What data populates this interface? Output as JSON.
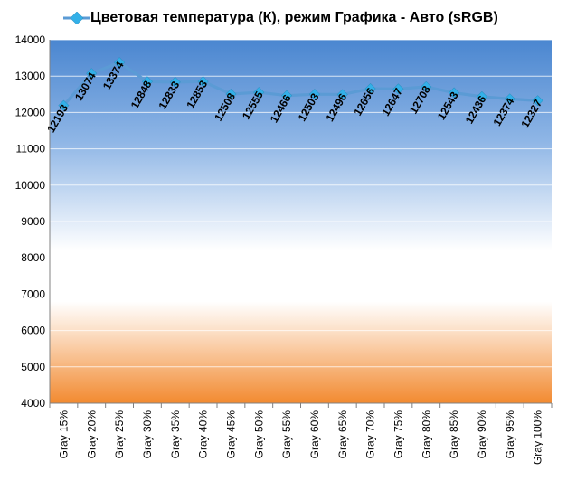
{
  "chart_data": {
    "type": "line",
    "title": "Цветовая температура (К), режим Графика - Авто (sRGB)",
    "xlabel": "",
    "ylabel": "",
    "ylim": [
      4000,
      14000
    ],
    "yticks": [
      4000,
      5000,
      6000,
      7000,
      8000,
      9000,
      10000,
      11000,
      12000,
      13000,
      14000
    ],
    "grid": true,
    "legend_position": "top",
    "categories": [
      "Gray 15%",
      "Gray 20%",
      "Gray 25%",
      "Gray 30%",
      "Gray 35%",
      "Gray 40%",
      "Gray 45%",
      "Gray 50%",
      "Gray 55%",
      "Gray 60%",
      "Gray 65%",
      "Gray 70%",
      "Gray 75%",
      "Gray 80%",
      "Gray 85%",
      "Gray 90%",
      "Gray 95%",
      "Gray 100%"
    ],
    "series": [
      {
        "name": "Цветовая температура (К), режим Графика - Авто (sRGB)",
        "color": "#5b9bd5",
        "marker_color": "#33b0e8",
        "values": [
          12193,
          13074,
          13374,
          12848,
          12833,
          12853,
          12508,
          12555,
          12466,
          12503,
          12496,
          12656,
          12647,
          12708,
          12543,
          12436,
          12374,
          12327
        ]
      }
    ],
    "background": {
      "top": "#4a86d0",
      "middle": "#ffffff",
      "bottom": "#f28a30"
    }
  }
}
